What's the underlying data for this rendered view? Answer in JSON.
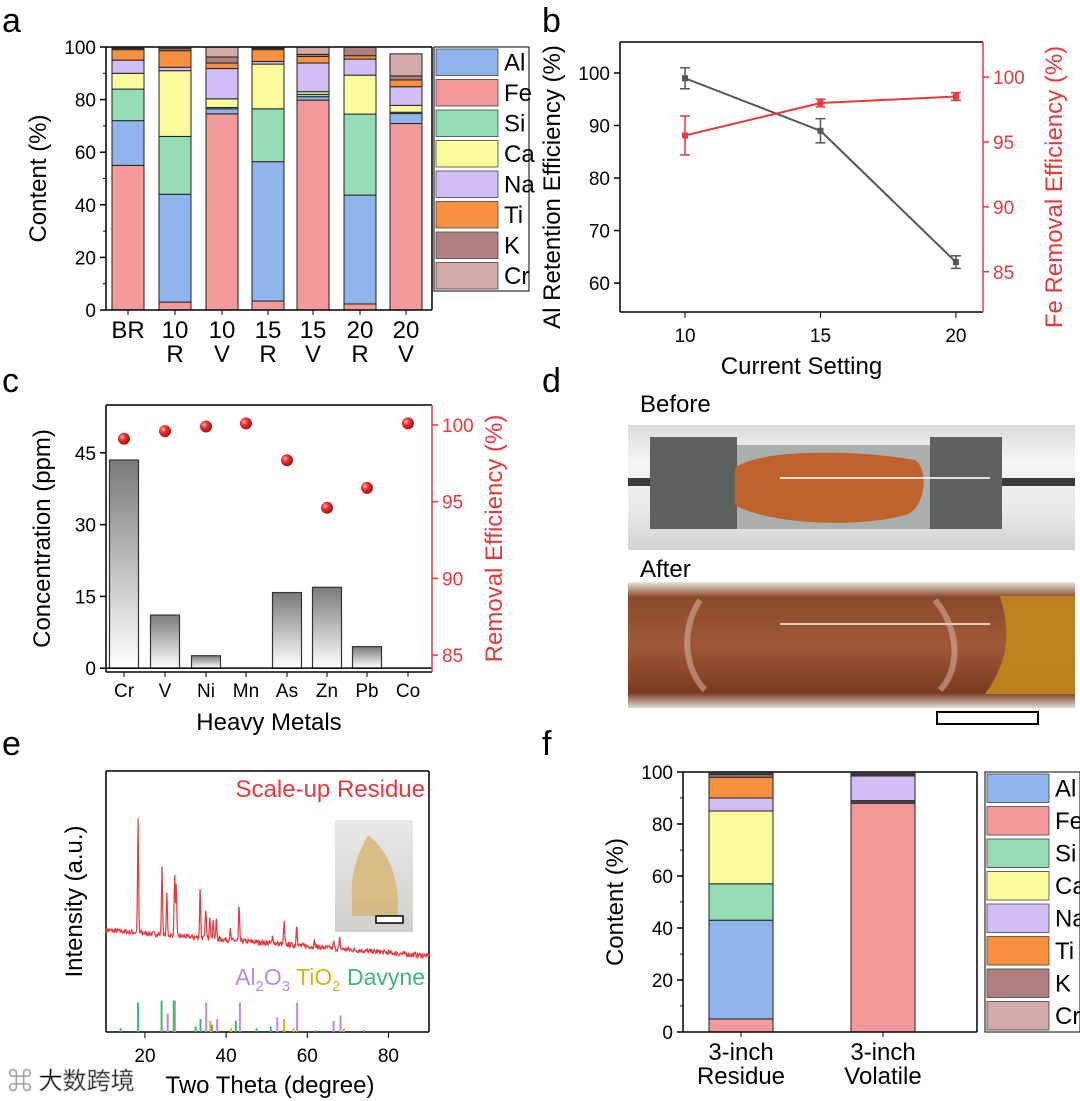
{
  "panel_labels": [
    "a",
    "b",
    "c",
    "d",
    "e",
    "f"
  ],
  "colors": {
    "Al": "#8fb4ec",
    "Fe": "#f4999a",
    "Si": "#94dcb4",
    "Ca": "#fbfb9b",
    "Na": "#d2bdf6",
    "Ti": "#f8913f",
    "K": "#b07f80",
    "Cr": "#d4aaa8",
    "red_axis": "#e8383d",
    "Al2O3": "#b98ae6",
    "TiO2": "#d9b21a",
    "Davyne": "#3cb878"
  },
  "photos": {
    "before_label": "Before",
    "after_label": "After"
  },
  "watermark": "大数跨境",
  "chart_data": [
    {
      "id": "a",
      "type": "bar",
      "stacked": true,
      "categories": [
        "BR",
        "10\nR",
        "10\nV",
        "15\nR",
        "15\nV",
        "20\nR",
        "20\nV"
      ],
      "ylabel": "Content (%)",
      "xlabel": "",
      "ylim": [
        0,
        100
      ],
      "yticks": [
        0,
        20,
        40,
        60,
        80,
        100
      ],
      "legend": [
        "Al",
        "Fe",
        "Si",
        "Ca",
        "Na",
        "Ti",
        "K",
        "Cr"
      ],
      "legend_placement": "right",
      "stack_order": [
        "Fe",
        "Al",
        "Si",
        "Ca",
        "Na",
        "Ti",
        "K",
        "Cr"
      ],
      "series": {
        "Fe": [
          55,
          3,
          74.6,
          3.4,
          79.8,
          2.3,
          70.9
        ],
        "Al": [
          17,
          41,
          1.9,
          53,
          1.3,
          41.4,
          3.8
        ],
        "Si": [
          12,
          22,
          0.5,
          20.1,
          0.9,
          30.8,
          0.5
        ],
        "Ca": [
          6,
          25,
          3.3,
          17,
          1,
          14.8,
          2.6
        ],
        "Na": [
          5,
          1.3,
          11.5,
          1,
          10.9,
          6.1,
          7.1
        ],
        "Ti": [
          4,
          6.3,
          2.1,
          4.5,
          2.5,
          1.3,
          2.6
        ],
        "K": [
          0.5,
          0.8,
          2.3,
          0.5,
          0.8,
          3.3,
          1.5
        ],
        "Cr": [
          0.5,
          0.6,
          3.8,
          0.5,
          2.8,
          0,
          8.4
        ]
      }
    },
    {
      "id": "b",
      "type": "line",
      "x": [
        10,
        15,
        20
      ],
      "xlabel": "Current Setting",
      "xlim": [
        7.6,
        21
      ],
      "xticks": [
        10,
        15,
        20
      ],
      "series": [
        {
          "name": "Al Retention Efficiency (%)",
          "axis": "left",
          "values": [
            99,
            89,
            64
          ],
          "errors": [
            2,
            2.3,
            1.2
          ],
          "color": "#555555"
        },
        {
          "name": "Fe Removal Efficiency (%)",
          "axis": "right",
          "values": [
            95.5,
            98,
            98.5
          ],
          "errors": [
            1.5,
            0.3,
            0.3
          ],
          "color": "#e8383d"
        }
      ],
      "ylim_left": [
        54.5,
        105.9
      ],
      "yticks_left": [
        60,
        70,
        80,
        90,
        100
      ],
      "ylim_right": [
        81.9,
        102.7
      ],
      "yticks_right": [
        85,
        90,
        95,
        100
      ]
    },
    {
      "id": "c",
      "type": "bar",
      "categories": [
        "Cr",
        "V",
        "Ni",
        "Mn",
        "As",
        "Zn",
        "Pb",
        "Co"
      ],
      "xlabel": "Heavy Metals",
      "ylabel": "Concentration (ppm)",
      "ylim": [
        -0.8,
        55
      ],
      "yticks": [
        0,
        15,
        30,
        45
      ],
      "values": [
        43.5,
        11.1,
        2.6,
        0,
        15.8,
        16.9,
        4.5,
        0
      ],
      "ylabel_right": "Removal Efficiency (%)",
      "ylim_right": [
        83.9,
        101.3
      ],
      "yticks_right": [
        85,
        90,
        95,
        100
      ],
      "removal_efficiency": [
        99.1,
        99.6,
        99.9,
        100.1,
        97.7,
        94.6,
        95.9,
        100.1
      ]
    },
    {
      "id": "e",
      "type": "line",
      "xlabel": "Two Theta (degree)",
      "ylabel": "Intensity (a.u.)",
      "xlim": [
        10.4,
        90
      ],
      "xticks": [
        20,
        40,
        60,
        80
      ],
      "annotation": "Scale-up Residue",
      "curve_peaks": [
        [
          18.3,
          0.57
        ],
        [
          24.2,
          0.33
        ],
        [
          25.4,
          0.2
        ],
        [
          27.3,
          0.3
        ],
        [
          27.7,
          0.25
        ],
        [
          33.6,
          0.25
        ],
        [
          35.0,
          0.15
        ],
        [
          36.0,
          0.12
        ],
        [
          36.8,
          0.1
        ],
        [
          37.6,
          0.1
        ],
        [
          41.0,
          0.05
        ],
        [
          43.2,
          0.17
        ],
        [
          51.5,
          0.04
        ],
        [
          54.3,
          0.11
        ],
        [
          57.4,
          0.11
        ],
        [
          61.8,
          0.03
        ],
        [
          66.5,
          0.03
        ],
        [
          68.0,
          0.05
        ]
      ],
      "references": [
        {
          "name": "Al",
          "sub": "2",
          "name2": "O",
          "sub2": "3",
          "key": "Al2O3",
          "sticks": [
            [
              25.6,
              0.5
            ],
            [
              35.1,
              0.8
            ],
            [
              37.8,
              0.35
            ],
            [
              43.4,
              0.8
            ],
            [
              52.6,
              0.4
            ],
            [
              57.5,
              0.8
            ],
            [
              66.5,
              0.3
            ],
            [
              68.2,
              0.45
            ]
          ]
        },
        {
          "name": "TiO",
          "sub": "2",
          "key": "TiO2",
          "sticks": [
            [
              27.4,
              0.85
            ],
            [
              36.1,
              0.3
            ],
            [
              41.2,
              0.1
            ],
            [
              54.3,
              0.35
            ],
            [
              56.6,
              0.1
            ],
            [
              69.0,
              0.1
            ]
          ]
        },
        {
          "name": "Davyne",
          "key": "Davyne",
          "sticks": [
            [
              14.0,
              0.1
            ],
            [
              18.3,
              0.8
            ],
            [
              24.1,
              0.85
            ],
            [
              27.1,
              0.85
            ],
            [
              32.5,
              0.15
            ],
            [
              33.7,
              0.35
            ],
            [
              36.5,
              0.2
            ],
            [
              42.4,
              0.3
            ],
            [
              47.5,
              0.1
            ],
            [
              51.0,
              0.15
            ],
            [
              54.0,
              0.05
            ],
            [
              62,
              0.05
            ],
            [
              74,
              0.05
            ]
          ]
        }
      ]
    },
    {
      "id": "f",
      "type": "bar",
      "stacked": true,
      "categories": [
        "3-inch\nResidue",
        "3-inch\nVolatile"
      ],
      "ylabel": "Content (%)",
      "ylim": [
        0,
        100
      ],
      "yticks": [
        0,
        20,
        40,
        60,
        80,
        100
      ],
      "legend": [
        "Al",
        "Fe",
        "Si",
        "Ca",
        "Na",
        "Ti",
        "K",
        "Cr"
      ],
      "legend_placement": "right",
      "stack_order": [
        "Fe",
        "Al",
        "Si",
        "Ca",
        "Na",
        "Ti",
        "K",
        "Cr"
      ],
      "series": {
        "Fe": [
          5,
          88
        ],
        "Al": [
          38,
          0.5
        ],
        "Si": [
          14,
          0.5
        ],
        "Ca": [
          28,
          0
        ],
        "Na": [
          5,
          9.5
        ],
        "Ti": [
          8,
          0
        ],
        "K": [
          1,
          0.5
        ],
        "Cr": [
          0.5,
          0.5
        ]
      }
    }
  ]
}
